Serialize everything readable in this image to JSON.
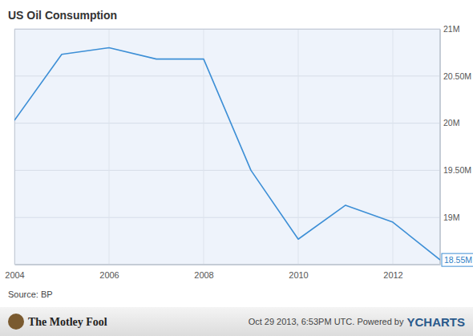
{
  "chart_data": {
    "type": "line",
    "title": "US Oil Consumption",
    "x": [
      2004,
      2005,
      2006,
      2007,
      2008,
      2009,
      2010,
      2011,
      2012,
      2013
    ],
    "values": [
      20.03,
      20.73,
      20.8,
      20.68,
      20.68,
      19.5,
      18.77,
      19.13,
      18.95,
      18.55
    ],
    "value_labels": [
      null,
      null,
      null,
      null,
      null,
      null,
      null,
      null,
      null,
      "18.55M"
    ],
    "color": "#3d8fd6",
    "xlim": [
      2004,
      2013
    ],
    "xticks": [
      2004,
      2006,
      2008,
      2010,
      2012
    ],
    "ylim": [
      18.5,
      21
    ],
    "yticks": [
      {
        "value": 19,
        "label": "19M"
      },
      {
        "value": 19.5,
        "label": "19.50M"
      },
      {
        "value": 20,
        "label": "20M"
      },
      {
        "value": 20.5,
        "label": "20.50M"
      },
      {
        "value": 21,
        "label": "21M"
      }
    ],
    "grid": true,
    "source": "Source: BP",
    "logo_text": "The Motley Fool",
    "footer_note": "Oct 29 2013, 6:53PM UTC.  Powered by",
    "footer_brand": "YCHARTS"
  }
}
